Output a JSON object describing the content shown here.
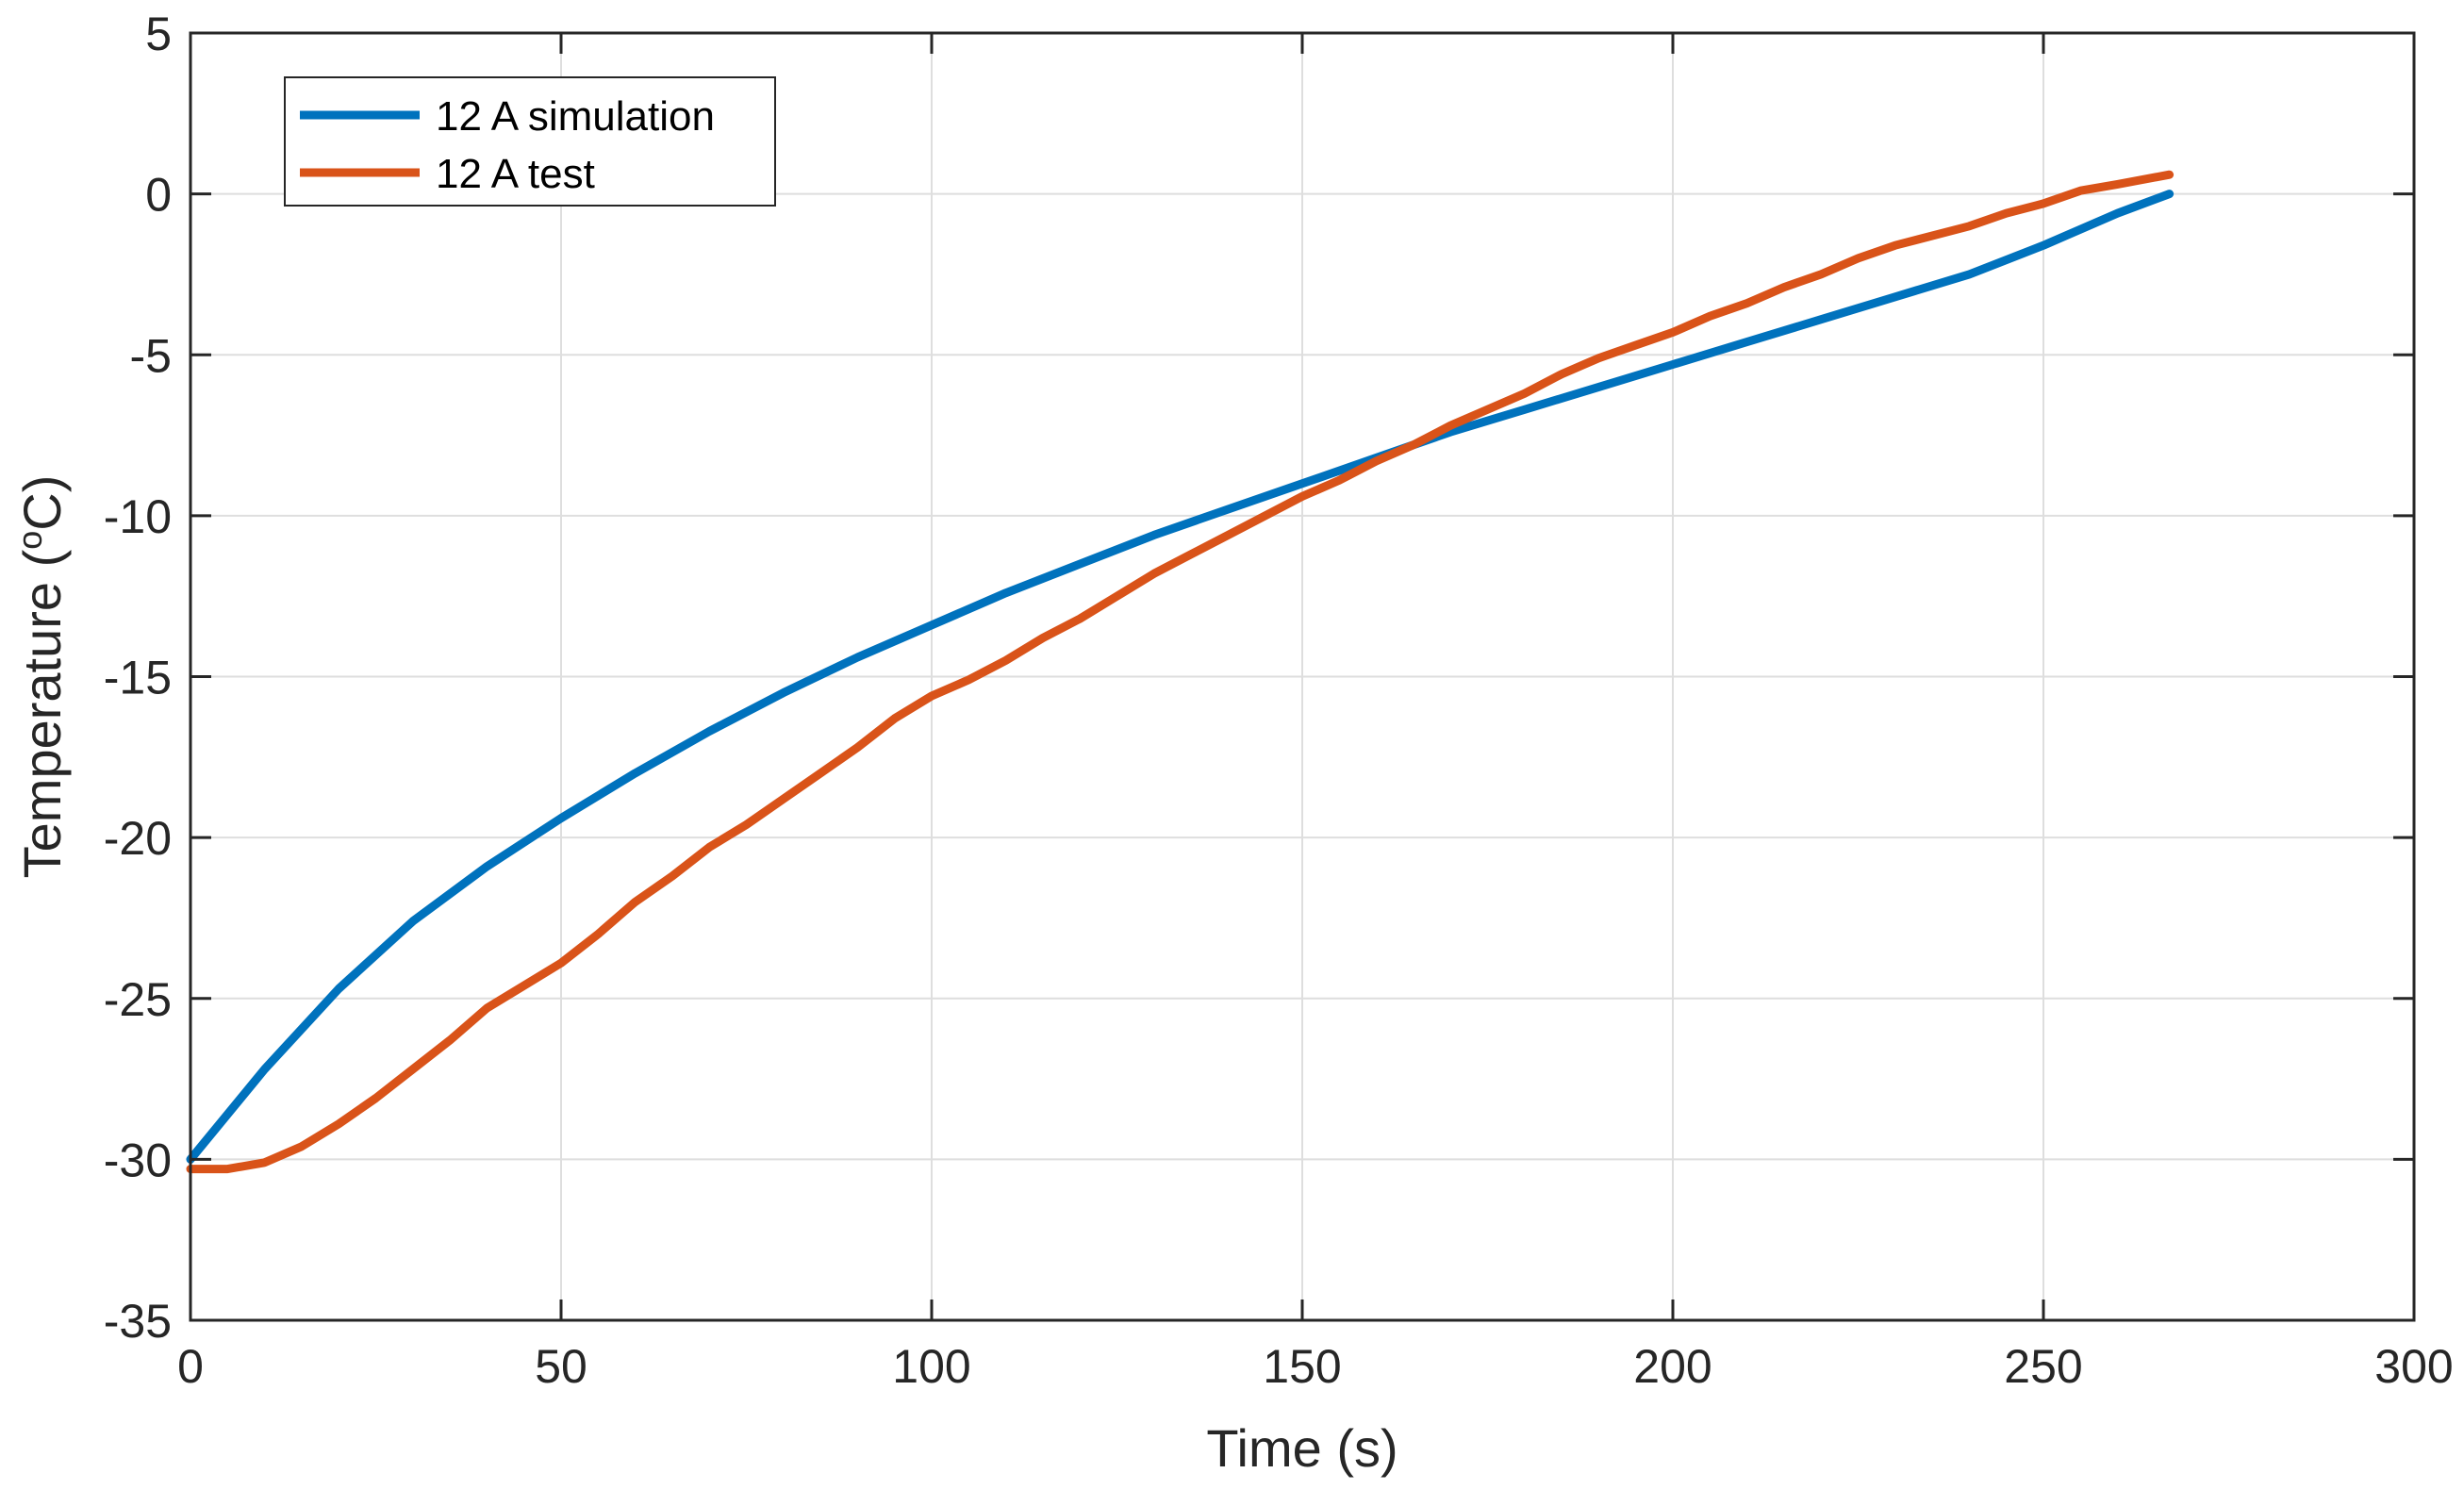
{
  "chart_data": {
    "type": "line",
    "title": "",
    "xlabel": "Time (s)",
    "ylabel": "Temperature (",
    "ylabel_unit_sup": "o",
    "ylabel_unit_rest": "C)",
    "xlim": [
      0,
      300
    ],
    "ylim": [
      -35,
      5
    ],
    "xticks": [
      0,
      50,
      100,
      150,
      200,
      250,
      300
    ],
    "yticks": [
      5,
      0,
      -5,
      -10,
      -15,
      -20,
      -25,
      -30,
      -35
    ],
    "xtick_labels": [
      "0",
      "50",
      "100",
      "150",
      "200",
      "250",
      "300"
    ],
    "ytick_labels": [
      "5",
      "0",
      "-5",
      "-10",
      "-15",
      "-20",
      "-25",
      "-30",
      "-35"
    ],
    "grid": true,
    "legend_position": "top-left",
    "series": [
      {
        "name": "12 A simulation",
        "color": "#0072BD",
        "x": [
          0,
          10,
          20,
          30,
          40,
          50,
          60,
          70,
          80,
          90,
          100,
          110,
          120,
          130,
          140,
          150,
          160,
          170,
          180,
          190,
          200,
          210,
          220,
          230,
          240,
          250,
          260,
          267
        ],
        "y": [
          -30,
          -27.2,
          -24.7,
          -22.6,
          -20.9,
          -19.4,
          -18.0,
          -16.7,
          -15.5,
          -14.4,
          -13.4,
          -12.4,
          -11.5,
          -10.6,
          -9.8,
          -9.0,
          -8.2,
          -7.4,
          -6.7,
          -6.0,
          -5.3,
          -4.6,
          -3.9,
          -3.2,
          -2.5,
          -1.6,
          -0.6,
          0.0
        ]
      },
      {
        "name": "12 A test",
        "color": "#D95319",
        "x": [
          0,
          5,
          10,
          15,
          20,
          25,
          30,
          35,
          40,
          45,
          50,
          55,
          60,
          65,
          70,
          75,
          80,
          85,
          90,
          95,
          100,
          105,
          110,
          115,
          120,
          125,
          130,
          135,
          140,
          145,
          150,
          155,
          160,
          165,
          170,
          175,
          180,
          185,
          190,
          195,
          200,
          205,
          210,
          215,
          220,
          225,
          230,
          235,
          240,
          245,
          250,
          255,
          260,
          267
        ],
        "y": [
          -30.3,
          -30.3,
          -30.1,
          -29.6,
          -28.9,
          -28.1,
          -27.2,
          -26.3,
          -25.3,
          -24.6,
          -23.9,
          -23.0,
          -22.0,
          -21.2,
          -20.3,
          -19.6,
          -18.8,
          -18.0,
          -17.2,
          -16.3,
          -15.6,
          -15.1,
          -14.5,
          -13.8,
          -13.2,
          -12.5,
          -11.8,
          -11.2,
          -10.6,
          -10.0,
          -9.4,
          -8.9,
          -8.3,
          -7.8,
          -7.2,
          -6.7,
          -6.2,
          -5.6,
          -5.1,
          -4.7,
          -4.3,
          -3.8,
          -3.4,
          -2.9,
          -2.5,
          -2.0,
          -1.6,
          -1.3,
          -1.0,
          -0.6,
          -0.3,
          0.1,
          0.3,
          0.6
        ]
      }
    ]
  }
}
